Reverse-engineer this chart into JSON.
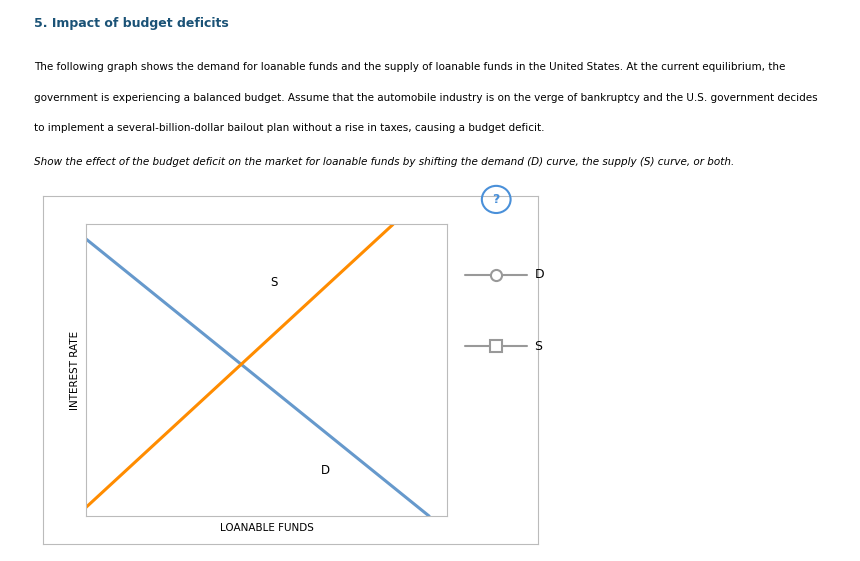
{
  "title": "5. Impact of budget deficits",
  "para1_lines": [
    "The following graph shows the demand for loanable funds and the supply of loanable funds in the United States. At the current equilibrium, the",
    "government is experiencing a balanced budget. Assume that the automobile industry is on the verge of bankruptcy and the U.S. government decides",
    "to implement a several-billion-dollar bailout plan without a rise in taxes, causing a budget deficit."
  ],
  "paragraph2": "Show the effect of the budget deficit on the market for loanable funds by shifting the demand (D) curve, the supply (S) curve, or both.",
  "xlabel": "LOANABLE FUNDS",
  "ylabel": "INTEREST RATE",
  "demand_color": "#6699CC",
  "supply_color": "#FF8C00",
  "legend_line_color": "#999999",
  "background_color": "#FFFFFF",
  "title_color": "#1a5276",
  "text_color": "#000000",
  "question_mark_color": "#4a90d9",
  "xlim": [
    0,
    10
  ],
  "ylim": [
    0,
    10
  ]
}
